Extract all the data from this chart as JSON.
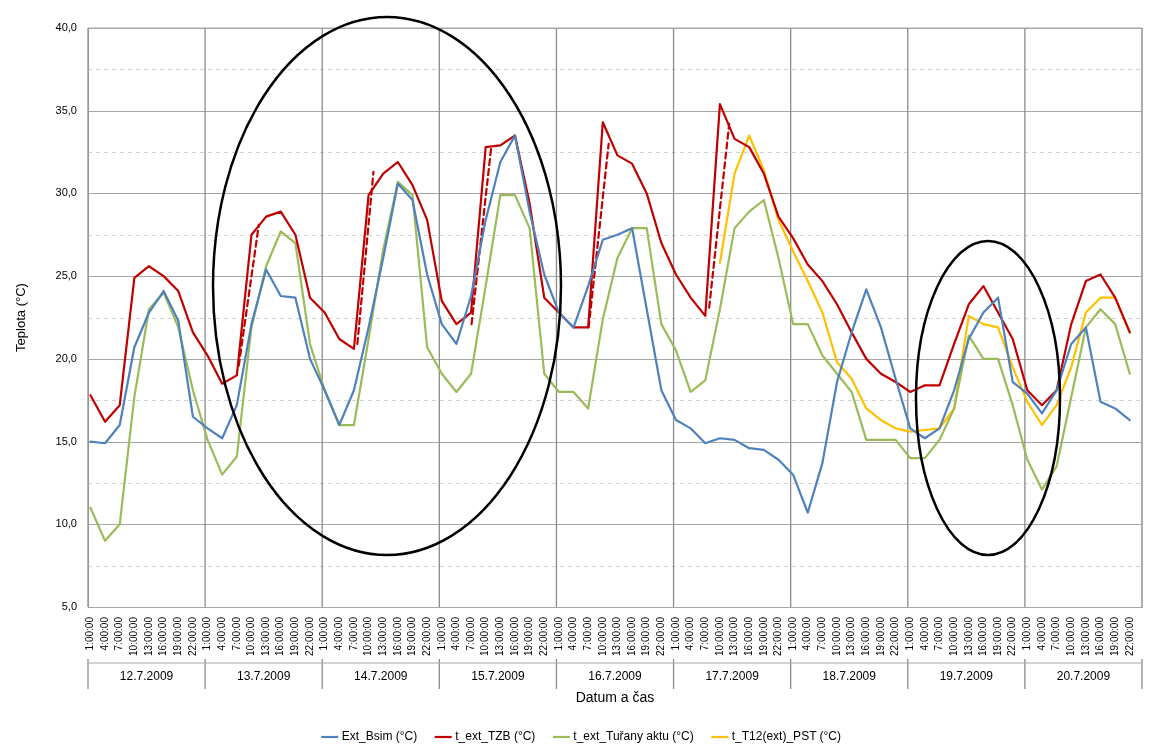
{
  "chart_data": {
    "type": "line",
    "xlabel": "Datum a čas",
    "ylabel": "Teplota (°C)",
    "marker": "none",
    "grid": true,
    "legend": "bottom",
    "xlim": [
      "2009-07-12T00:30",
      "2009-07-21T00:30"
    ],
    "xticks": [
      {
        "value": "2009-07-12T00:30",
        "label": null
      },
      {
        "value": "2009-07-12T01:00",
        "label": "1:00:00"
      },
      {
        "value": "2009-07-12T04:00",
        "label": "4:00:00"
      },
      {
        "value": "2009-07-12T07:00",
        "label": "7:00:00"
      },
      {
        "value": "2009-07-12T10:00",
        "label": "10:00:00"
      },
      {
        "value": "2009-07-12T13:00",
        "label": "13:00:00"
      },
      {
        "value": "2009-07-12T16:00",
        "label": "16:00:00"
      },
      {
        "value": "2009-07-12T19:00",
        "label": "19:00:00"
      },
      {
        "value": "2009-07-12T22:00",
        "label": "22:00:00"
      },
      {
        "value": "2009-07-13T00:30",
        "label": null
      },
      {
        "value": "2009-07-13T01:00",
        "label": "1:00:00"
      },
      {
        "value": "2009-07-13T04:00",
        "label": "4:00:00"
      },
      {
        "value": "2009-07-13T07:00",
        "label": "7:00:00"
      },
      {
        "value": "2009-07-13T10:00",
        "label": "10:00:00"
      },
      {
        "value": "2009-07-13T13:00",
        "label": "13:00:00"
      },
      {
        "value": "2009-07-13T16:00",
        "label": "16:00:00"
      },
      {
        "value": "2009-07-13T19:00",
        "label": "19:00:00"
      },
      {
        "value": "2009-07-13T22:00",
        "label": "22:00:00"
      },
      {
        "value": "2009-07-14T00:30",
        "label": null
      },
      {
        "value": "2009-07-14T01:00",
        "label": "1:00:00"
      },
      {
        "value": "2009-07-14T04:00",
        "label": "4:00:00"
      },
      {
        "value": "2009-07-14T07:00",
        "label": "7:00:00"
      },
      {
        "value": "2009-07-14T10:00",
        "label": "10:00:00"
      },
      {
        "value": "2009-07-14T13:00",
        "label": "13:00:00"
      },
      {
        "value": "2009-07-14T16:00",
        "label": "16:00:00"
      },
      {
        "value": "2009-07-14T19:00",
        "label": "19:00:00"
      },
      {
        "value": "2009-07-14T22:00",
        "label": "22:00:00"
      },
      {
        "value": "2009-07-15T00:30",
        "label": null
      },
      {
        "value": "2009-07-15T01:00",
        "label": "1:00:00"
      },
      {
        "value": "2009-07-15T04:00",
        "label": "4:00:00"
      },
      {
        "value": "2009-07-15T07:00",
        "label": "7:00:00"
      },
      {
        "value": "2009-07-15T10:00",
        "label": "10:00:00"
      },
      {
        "value": "2009-07-15T13:00",
        "label": "13:00:00"
      },
      {
        "value": "2009-07-15T16:00",
        "label": "16:00:00"
      },
      {
        "value": "2009-07-15T19:00",
        "label": "19:00:00"
      },
      {
        "value": "2009-07-15T22:00",
        "label": "22:00:00"
      },
      {
        "value": "2009-07-16T00:30",
        "label": null
      },
      {
        "value": "2009-07-16T01:00",
        "label": "1:00:00"
      },
      {
        "value": "2009-07-16T04:00",
        "label": "4:00:00"
      },
      {
        "value": "2009-07-16T07:00",
        "label": "7:00:00"
      },
      {
        "value": "2009-07-16T10:00",
        "label": "10:00:00"
      },
      {
        "value": "2009-07-16T13:00",
        "label": "13:00:00"
      },
      {
        "value": "2009-07-16T16:00",
        "label": "16:00:00"
      },
      {
        "value": "2009-07-16T19:00",
        "label": "19:00:00"
      },
      {
        "value": "2009-07-16T22:00",
        "label": "22:00:00"
      },
      {
        "value": "2009-07-17T00:30",
        "label": null
      },
      {
        "value": "2009-07-17T01:00",
        "label": "1:00:00"
      },
      {
        "value": "2009-07-17T04:00",
        "label": "4:00:00"
      },
      {
        "value": "2009-07-17T07:00",
        "label": "7:00:00"
      },
      {
        "value": "2009-07-17T10:00",
        "label": "10:00:00"
      },
      {
        "value": "2009-07-17T13:00",
        "label": "13:00:00"
      },
      {
        "value": "2009-07-17T16:00",
        "label": "16:00:00"
      },
      {
        "value": "2009-07-17T19:00",
        "label": "19:00:00"
      },
      {
        "value": "2009-07-17T22:00",
        "label": "22:00:00"
      },
      {
        "value": "2009-07-18T00:30",
        "label": null
      },
      {
        "value": "2009-07-18T01:00",
        "label": "1:00:00"
      },
      {
        "value": "2009-07-18T04:00",
        "label": "4:00:00"
      },
      {
        "value": "2009-07-18T07:00",
        "label": "7:00:00"
      },
      {
        "value": "2009-07-18T10:00",
        "label": "10:00:00"
      },
      {
        "value": "2009-07-18T13:00",
        "label": "13:00:00"
      },
      {
        "value": "2009-07-18T16:00",
        "label": "16:00:00"
      },
      {
        "value": "2009-07-18T19:00",
        "label": "19:00:00"
      },
      {
        "value": "2009-07-18T22:00",
        "label": "22:00:00"
      },
      {
        "value": "2009-07-19T00:30",
        "label": null
      },
      {
        "value": "2009-07-19T01:00",
        "label": "1:00:00"
      },
      {
        "value": "2009-07-19T04:00",
        "label": "4:00:00"
      },
      {
        "value": "2009-07-19T07:00",
        "label": "7:00:00"
      },
      {
        "value": "2009-07-19T10:00",
        "label": "10:00:00"
      },
      {
        "value": "2009-07-19T13:00",
        "label": "13:00:00"
      },
      {
        "value": "2009-07-19T16:00",
        "label": "16:00:00"
      },
      {
        "value": "2009-07-19T19:00",
        "label": "19:00:00"
      },
      {
        "value": "2009-07-19T22:00",
        "label": "22:00:00"
      },
      {
        "value": "2009-07-20T00:30",
        "label": null
      },
      {
        "value": "2009-07-20T01:00",
        "label": "1:00:00"
      },
      {
        "value": "2009-07-20T04:00",
        "label": "4:00:00"
      },
      {
        "value": "2009-07-20T07:00",
        "label": "7:00:00"
      },
      {
        "value": "2009-07-20T10:00",
        "label": "10:00:00"
      },
      {
        "value": "2009-07-20T13:00",
        "label": "13:00:00"
      },
      {
        "value": "2009-07-20T16:00",
        "label": "16:00:00"
      },
      {
        "value": "2009-07-20T19:00",
        "label": "19:00:00"
      },
      {
        "value": "2009-07-20T22:00",
        "label": "22:00:00"
      },
      {
        "value": "2009-07-21T00:30",
        "label": null
      }
    ],
    "ylim": [
      5,
      40
    ],
    "yticks": [
      {
        "value": 5,
        "label": "5,0"
      },
      {
        "value": 7.5,
        "label": null
      },
      {
        "value": 10,
        "label": "10,0"
      },
      {
        "value": 12.5,
        "label": null
      },
      {
        "value": 15,
        "label": "15,0"
      },
      {
        "value": 17.5,
        "label": null
      },
      {
        "value": 20,
        "label": "20,0"
      },
      {
        "value": 22.5,
        "label": null
      },
      {
        "value": 25,
        "label": "25,0"
      },
      {
        "value": 27.5,
        "label": null
      },
      {
        "value": 30,
        "label": "30,0"
      },
      {
        "value": 32.5,
        "label": null
      },
      {
        "value": 35,
        "label": "35,0"
      },
      {
        "value": 37.5,
        "label": null
      },
      {
        "value": 40,
        "label": "40,0"
      }
    ],
    "annotations": [
      "12.7.2009",
      "13.7.2009",
      "14.7.2009",
      "15.7.2009",
      "16.7.2009",
      "17.7.2009",
      "18.7.2009",
      "19.7.2009",
      "20.7.2009"
    ],
    "x": [
      "2009-07-12T01:00",
      "2009-07-12T04:00",
      "2009-07-12T07:00",
      "2009-07-12T10:00",
      "2009-07-12T13:00",
      "2009-07-12T16:00",
      "2009-07-12T19:00",
      "2009-07-12T22:00",
      "2009-07-13T01:00",
      "2009-07-13T04:00",
      "2009-07-13T07:00",
      "2009-07-13T10:00",
      "2009-07-13T13:00",
      "2009-07-13T16:00",
      "2009-07-13T19:00",
      "2009-07-13T22:00",
      "2009-07-14T01:00",
      "2009-07-14T04:00",
      "2009-07-14T07:00",
      "2009-07-14T10:00",
      "2009-07-14T13:00",
      "2009-07-14T16:00",
      "2009-07-14T19:00",
      "2009-07-14T22:00",
      "2009-07-15T01:00",
      "2009-07-15T04:00",
      "2009-07-15T07:00",
      "2009-07-15T10:00",
      "2009-07-15T13:00",
      "2009-07-15T16:00",
      "2009-07-15T19:00",
      "2009-07-15T22:00",
      "2009-07-16T01:00",
      "2009-07-16T04:00",
      "2009-07-16T07:00",
      "2009-07-16T10:00",
      "2009-07-16T13:00",
      "2009-07-16T16:00",
      "2009-07-16T19:00",
      "2009-07-16T22:00",
      "2009-07-17T01:00",
      "2009-07-17T04:00",
      "2009-07-17T07:00",
      "2009-07-17T10:00",
      "2009-07-17T13:00",
      "2009-07-17T16:00",
      "2009-07-17T19:00",
      "2009-07-17T22:00",
      "2009-07-18T01:00",
      "2009-07-18T04:00",
      "2009-07-18T07:00",
      "2009-07-18T10:00",
      "2009-07-18T13:00",
      "2009-07-18T16:00",
      "2009-07-18T19:00",
      "2009-07-18T22:00",
      "2009-07-19T01:00",
      "2009-07-19T04:00",
      "2009-07-19T07:00",
      "2009-07-19T10:00",
      "2009-07-19T13:00",
      "2009-07-19T16:00",
      "2009-07-19T19:00",
      "2009-07-19T22:00",
      "2009-07-20T01:00",
      "2009-07-20T04:00",
      "2009-07-20T07:00",
      "2009-07-20T10:00",
      "2009-07-20T13:00",
      "2009-07-20T16:00",
      "2009-07-20T19:00",
      "2009-07-20T22:00"
    ],
    "series": [
      {
        "name": "Ext_Bsim (°C)",
        "color": "#4f81bd",
        "values": [
          15.0,
          14.9,
          16.0,
          20.7,
          22.8,
          24.1,
          22.3,
          16.5,
          15.8,
          15.2,
          17.2,
          22.1,
          25.4,
          23.8,
          23.7,
          20.0,
          18.1,
          16.0,
          18.1,
          21.9,
          26.1,
          30.6,
          29.6,
          25.1,
          22.1,
          20.9,
          23.8,
          28.4,
          31.9,
          33.5,
          28.9,
          25.1,
          22.8,
          21.9,
          24.4,
          27.2,
          27.5,
          27.9,
          23.0,
          18.1,
          16.3,
          15.8,
          14.9,
          15.2,
          15.1,
          14.6,
          14.5,
          13.9,
          13.0,
          10.7,
          13.7,
          18.6,
          21.6,
          24.2,
          21.9,
          18.8,
          15.8,
          15.2,
          15.8,
          18.1,
          21.2,
          22.8,
          23.7,
          18.6,
          17.9,
          16.7,
          18.1,
          20.9,
          21.9,
          17.4,
          17.0,
          16.3
        ]
      },
      {
        "name": "t_ext_TZB (°C)",
        "color": "#c00000",
        "values": [
          17.8,
          16.2,
          17.2,
          24.9,
          25.6,
          25.0,
          24.1,
          21.6,
          20.2,
          18.5,
          19.0,
          27.5,
          28.6,
          28.9,
          27.5,
          23.7,
          22.8,
          21.2,
          20.6,
          29.9,
          31.2,
          31.9,
          30.5,
          28.4,
          23.5,
          22.1,
          22.8,
          32.8,
          32.9,
          33.5,
          29.4,
          23.7,
          22.8,
          21.9,
          21.9,
          34.3,
          32.3,
          31.8,
          30.0,
          27.0,
          25.1,
          23.7,
          22.6,
          35.4,
          33.3,
          32.8,
          31.2,
          28.6,
          27.3,
          25.7,
          24.7,
          23.3,
          21.6,
          20.0,
          19.1,
          18.6,
          18.0,
          18.4,
          18.4,
          20.9,
          23.3,
          24.4,
          22.8,
          21.2,
          18.1,
          17.2,
          18.1,
          22.1,
          24.7,
          25.1,
          23.7,
          21.6
        ]
      },
      {
        "name": "t_ext_Tuřany aktu (°C)",
        "color": "#9bbb59",
        "values": [
          11.0,
          9.0,
          10.0,
          17.7,
          23.0,
          24.0,
          21.9,
          18.1,
          15.1,
          13.0,
          14.1,
          21.9,
          25.6,
          27.7,
          27.0,
          20.9,
          18.1,
          16.0,
          16.0,
          21.2,
          26.6,
          30.7,
          29.9,
          20.7,
          19.1,
          18.0,
          19.1,
          24.4,
          29.9,
          29.9,
          27.9,
          19.1,
          18.0,
          18.0,
          17.0,
          22.4,
          26.1,
          27.9,
          27.9,
          22.1,
          20.5,
          18.0,
          18.7,
          23.0,
          27.9,
          28.9,
          29.6,
          26.1,
          22.1,
          22.1,
          20.2,
          19.1,
          18.0,
          15.1,
          15.1,
          15.1,
          14.0,
          14.0,
          15.1,
          17.0,
          21.4,
          20.0,
          20.0,
          17.2,
          13.9,
          12.1,
          13.5,
          17.7,
          21.9,
          23.0,
          22.1,
          19.1
        ]
      },
      {
        "name": "t_T12(ext)_PST (°C)",
        "color": "#ffc000",
        "values": [
          null,
          null,
          null,
          null,
          null,
          null,
          null,
          null,
          null,
          null,
          null,
          null,
          null,
          null,
          null,
          null,
          null,
          null,
          null,
          null,
          null,
          null,
          null,
          null,
          null,
          null,
          null,
          null,
          null,
          null,
          null,
          null,
          null,
          null,
          null,
          null,
          null,
          null,
          null,
          null,
          null,
          null,
          null,
          25.8,
          31.2,
          33.5,
          31.4,
          28.4,
          26.5,
          24.7,
          22.8,
          19.8,
          18.8,
          17.0,
          16.3,
          15.8,
          15.6,
          15.7,
          15.8,
          17.0,
          22.6,
          22.1,
          21.9,
          19.5,
          17.4,
          16.0,
          17.2,
          19.5,
          22.8,
          23.7,
          23.7,
          21.6
        ]
      },
      {
        "type": "line",
        "color": "#c00000",
        "line_style": "dashed",
        "x": [
          "2009-07-13T07:24",
          "2009-07-13T11:30",
          "2009-07-13T21:00",
          "2009-07-14T07:42",
          "2009-07-14T11:00",
          "2009-07-14T22:00",
          "2009-07-15T07:06",
          "2009-07-15T11:06",
          "2009-07-15T23:00",
          "2009-07-16T07:06",
          "2009-07-16T11:12",
          "2009-07-16T22:00",
          "2009-07-17T07:48",
          "2009-07-17T11:54"
        ],
        "values": [
          19.6,
          28.1,
          null,
          20.9,
          31.3,
          null,
          22.1,
          32.7,
          null,
          21.9,
          33.0,
          null,
          23.1,
          34.2
        ]
      }
    ]
  }
}
